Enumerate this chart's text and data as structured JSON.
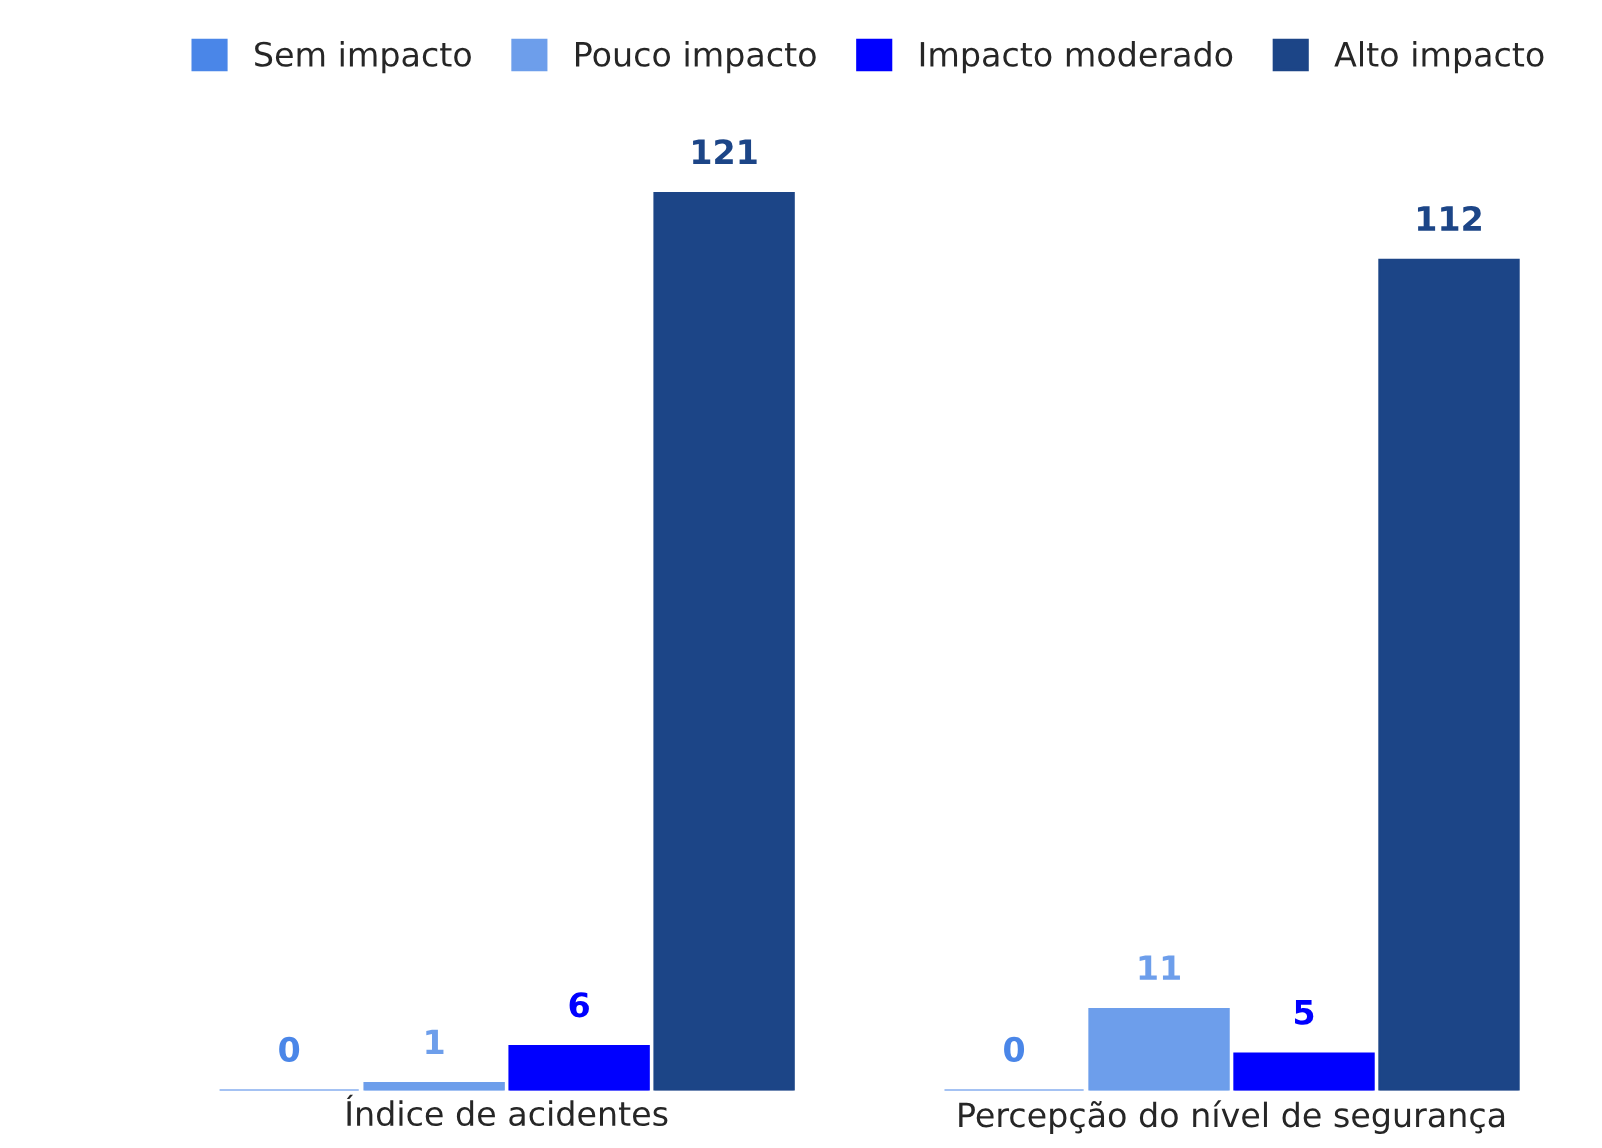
{
  "chart_data": {
    "type": "bar",
    "categories": [
      "Índice de acidentes",
      "Percepção do nível de segurança"
    ],
    "series": [
      {
        "name": "Sem impacto",
        "color": "#4a86e8",
        "values": [
          0,
          0
        ]
      },
      {
        "name": "Pouco impacto",
        "color": "#6d9eeb",
        "values": [
          1,
          11
        ]
      },
      {
        "name": "Impacto moderado",
        "color": "#0000ff",
        "values": [
          6,
          5
        ]
      },
      {
        "name": "Alto impacto",
        "color": "#1c4587",
        "values": [
          121,
          112
        ]
      }
    ],
    "data_labels": true,
    "legend": "top",
    "grid": false
  }
}
